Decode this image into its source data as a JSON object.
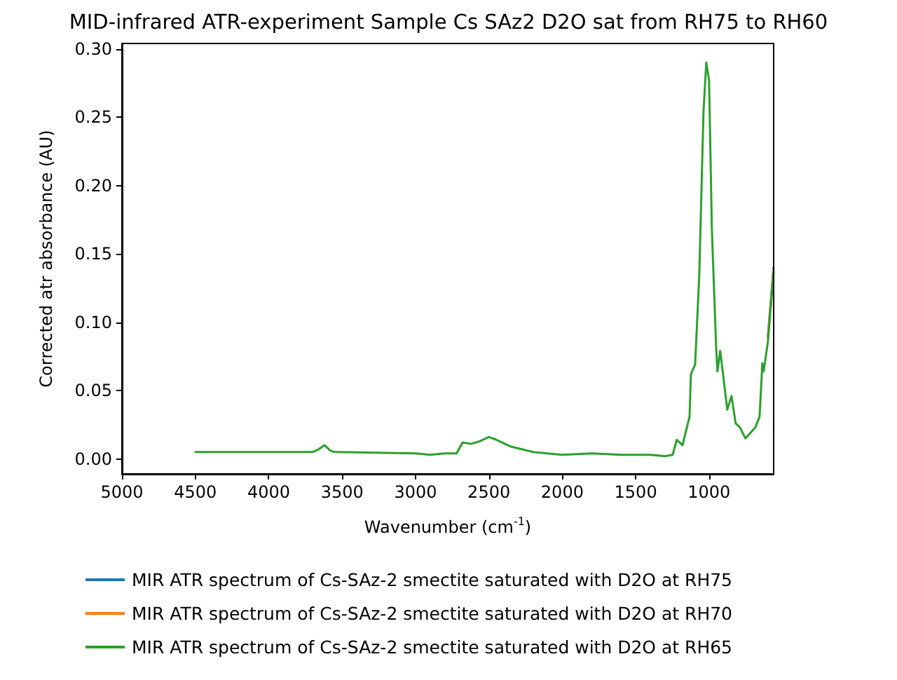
{
  "chart_data": {
    "type": "line",
    "title": "MID-infrared ATR-experiment Sample Cs SAz2 D2O sat from RH75 to RH60",
    "xlabel": "Wavenumber (cm$^{-1}$)",
    "ylabel": "Corrected atr absorbance (AU)",
    "x": [
      4500,
      3700,
      3660,
      3620,
      3580,
      3550,
      3000,
      2900,
      2800,
      2720,
      2680,
      2620,
      2560,
      2500,
      2450,
      2350,
      2200,
      2000,
      1800,
      1600,
      1400,
      1300,
      1248,
      1220,
      1181,
      1133,
      1124,
      1095,
      1067,
      1038,
      1019,
      1000,
      981,
      952,
      943,
      924,
      876,
      847,
      819,
      790,
      752,
      685,
      656,
      637,
      628,
      599,
      561
    ],
    "series": [
      {
        "name": "MIR ATR spectrum of Cs-SAz-2 smectite saturated with D2O at RH75",
        "color": "#1f77b4",
        "values": [
          null,
          null,
          null,
          null,
          null,
          null,
          null,
          null,
          null,
          null,
          null,
          null,
          null,
          null,
          null,
          null,
          null,
          null,
          null,
          null,
          null,
          null,
          null,
          null,
          null,
          null,
          null,
          null,
          null,
          null,
          null,
          null,
          null,
          null,
          null,
          null,
          null,
          null,
          null,
          null,
          null,
          null,
          null,
          null,
          null,
          0.09,
          0.14
        ]
      },
      {
        "name": "MIR ATR spectrum of Cs-SAz-2 smectite saturated with D2O at RH70",
        "color": "#ff7f0e",
        "values": [
          null,
          null,
          null,
          null,
          null,
          null,
          null,
          null,
          null,
          null,
          null,
          null,
          null,
          null,
          null,
          null,
          null,
          null,
          null,
          null,
          null,
          null,
          null,
          null,
          null,
          null,
          null,
          null,
          null,
          null,
          null,
          null,
          null,
          null,
          null,
          null,
          null,
          null,
          null,
          null,
          null,
          null,
          null,
          null,
          null,
          0.088,
          0.138
        ]
      },
      {
        "name": "MIR ATR spectrum of Cs-SAz-2 smectite saturated with D2O at RH65",
        "color": "#2ca02c",
        "values": [
          0.005,
          0.005,
          0.007,
          0.01,
          0.006,
          0.005,
          0.004,
          0.003,
          0.004,
          0.004,
          0.012,
          0.011,
          0.013,
          0.016,
          0.014,
          0.009,
          0.005,
          0.003,
          0.004,
          0.003,
          0.003,
          0.002,
          0.003,
          0.014,
          0.01,
          0.031,
          0.062,
          0.069,
          0.134,
          0.254,
          0.29,
          0.277,
          0.168,
          0.082,
          0.064,
          0.079,
          0.036,
          0.046,
          0.026,
          0.023,
          0.015,
          0.023,
          0.031,
          0.07,
          0.064,
          0.086,
          0.136
        ]
      }
    ],
    "xlim": [
      5000,
      560
    ],
    "xticks": [
      5000,
      4500,
      4000,
      3500,
      3000,
      2500,
      2000,
      1500,
      1000
    ],
    "ylim": [
      -0.011,
      0.304
    ],
    "yticks": [
      {
        "value": 0,
        "label": "0.00"
      },
      {
        "value": 0.05,
        "label": "0.05"
      },
      {
        "value": 0.1,
        "label": "0.10"
      },
      {
        "value": 0.15,
        "label": "0.15"
      },
      {
        "value": 0.2,
        "label": "0.20"
      },
      {
        "value": 0.25,
        "label": "0.25"
      },
      {
        "value": 0.3,
        "label": "0.30"
      }
    ],
    "grid": false,
    "legend": "bottom",
    "marker": "none",
    "line_style": "solid"
  }
}
